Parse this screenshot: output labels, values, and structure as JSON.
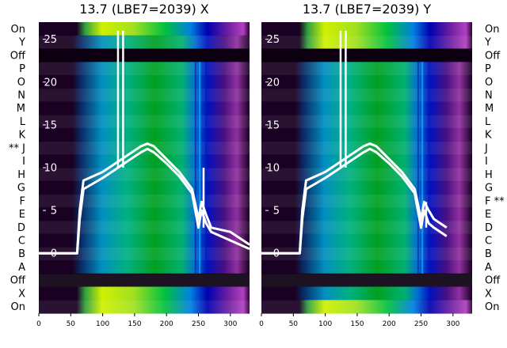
{
  "chart_data": [
    {
      "type": "heatmap",
      "title": "13.7 (LBE7=2039) X",
      "row_labels": [
        "On",
        "Y",
        "Off",
        "P",
        "O",
        "N",
        "M",
        "L",
        "K",
        "** J",
        "I",
        "H",
        "G",
        "F",
        "E",
        "D",
        "C",
        "B",
        "A",
        "Off",
        "X",
        "On"
      ],
      "row_label_side": "left",
      "xlim": [
        0,
        330
      ],
      "xticks": [
        0,
        50,
        100,
        150,
        200,
        250,
        300
      ],
      "ylim": [
        -7,
        27
      ],
      "yticks": [
        0,
        5,
        10,
        15,
        20,
        25
      ],
      "overlay_series": [
        {
          "x": [
            0,
            60,
            64,
            70,
            100,
            120,
            140,
            160,
            170,
            180,
            200,
            220,
            240,
            250,
            255,
            262,
            270,
            300,
            330
          ],
          "y": [
            0,
            0,
            5,
            8.5,
            9.5,
            10.5,
            11.5,
            12.5,
            12.8,
            12.5,
            11,
            9.5,
            7.5,
            4,
            6,
            4.5,
            3,
            2.5,
            1
          ]
        },
        {
          "x": [
            0,
            60,
            64,
            70,
            100,
            120,
            140,
            160,
            170,
            180,
            200,
            220,
            240,
            250,
            255,
            262,
            270,
            300,
            330
          ],
          "y": [
            0,
            0,
            4,
            7.5,
            8.8,
            9.8,
            10.8,
            11.8,
            12.2,
            11.8,
            10.5,
            9,
            7,
            3,
            5,
            3.5,
            2.5,
            1.5,
            0.5
          ]
        }
      ],
      "spikes": [
        {
          "x": 124,
          "y": 26
        },
        {
          "x": 132,
          "y": 26
        },
        {
          "x": 258,
          "y": 10
        }
      ]
    },
    {
      "type": "heatmap",
      "title": "13.7 (LBE7=2039) Y",
      "row_labels": [
        "On",
        "Y",
        "Off",
        "P",
        "O",
        "N",
        "M",
        "L",
        "K",
        "J",
        "I",
        "H",
        "G",
        "F **",
        "E",
        "D",
        "C",
        "B",
        "A",
        "Off",
        "X",
        "On"
      ],
      "row_label_side": "right",
      "xlim": [
        0,
        330
      ],
      "xticks": [
        0,
        50,
        100,
        150,
        200,
        250,
        300
      ],
      "ylim": [
        -7,
        27
      ],
      "yticks": [
        0,
        5,
        10,
        15,
        20,
        25
      ],
      "overlay_series": [
        {
          "x": [
            0,
            60,
            64,
            70,
            100,
            120,
            140,
            160,
            170,
            180,
            200,
            220,
            240,
            250,
            255,
            262,
            270,
            290
          ],
          "y": [
            0,
            0,
            5,
            8.5,
            9.5,
            10.5,
            11.5,
            12.5,
            12.8,
            12.5,
            11,
            9.5,
            7.5,
            4,
            6,
            5,
            4,
            3
          ]
        },
        {
          "x": [
            0,
            60,
            64,
            70,
            100,
            120,
            140,
            160,
            170,
            180,
            200,
            220,
            240,
            250,
            255,
            262,
            270,
            290
          ],
          "y": [
            0,
            0,
            4,
            7.5,
            8.8,
            9.8,
            10.8,
            11.8,
            12.2,
            11.8,
            10.5,
            9,
            7,
            3,
            5,
            3.5,
            3,
            2
          ]
        }
      ],
      "spikes": [
        {
          "x": 124,
          "y": 26
        },
        {
          "x": 132,
          "y": 26
        },
        {
          "x": 258,
          "y": 6
        }
      ]
    }
  ]
}
